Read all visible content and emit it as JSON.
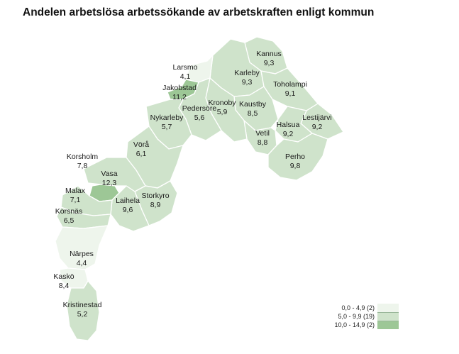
{
  "title": "Andelen arbetslösa arbetssökande av arbetskraften enligt kommun",
  "colors": {
    "low": "#eef5ec",
    "mid": "#cfe3cb",
    "high": "#9dc796",
    "border": "#ffffff"
  },
  "municipalities": [
    {
      "name": "Kannus",
      "value": "9,3"
    },
    {
      "name": "Larsmo",
      "value": "4,1"
    },
    {
      "name": "Karleby",
      "value": "9,3"
    },
    {
      "name": "Toholampi",
      "value": "9,1"
    },
    {
      "name": "Jakobstad",
      "value": "11,2"
    },
    {
      "name": "Pedersöre",
      "value": "5,6"
    },
    {
      "name": "Kronoby",
      "value": "5,9"
    },
    {
      "name": "Kaustby",
      "value": "8,5"
    },
    {
      "name": "Lestijärvi",
      "value": "9,2"
    },
    {
      "name": "Nykarleby",
      "value": "5,7"
    },
    {
      "name": "Halsua",
      "value": "9,2"
    },
    {
      "name": "Vetil",
      "value": "8,8"
    },
    {
      "name": "Vörå",
      "value": "6,1"
    },
    {
      "name": "Perho",
      "value": "9,8"
    },
    {
      "name": "Korsholm",
      "value": "7,8"
    },
    {
      "name": "Vasa",
      "value": "12,3"
    },
    {
      "name": "Malax",
      "value": "7,1"
    },
    {
      "name": "Storkyro",
      "value": "8,9"
    },
    {
      "name": "Laihela",
      "value": "9,6"
    },
    {
      "name": "Korsnäs",
      "value": "6,5"
    },
    {
      "name": "Närpes",
      "value": "4,4"
    },
    {
      "name": "Kaskö",
      "value": "8,4"
    },
    {
      "name": "Kristinestad",
      "value": "5,2"
    }
  ],
  "legend": [
    {
      "label": "0,0 - 4,9 (2)",
      "color": "#eef5ec"
    },
    {
      "label": "5,0 - 9,9 (19)",
      "color": "#cfe3cb"
    },
    {
      "label": "10,0 - 14,9 (2)",
      "color": "#9dc796"
    }
  ]
}
